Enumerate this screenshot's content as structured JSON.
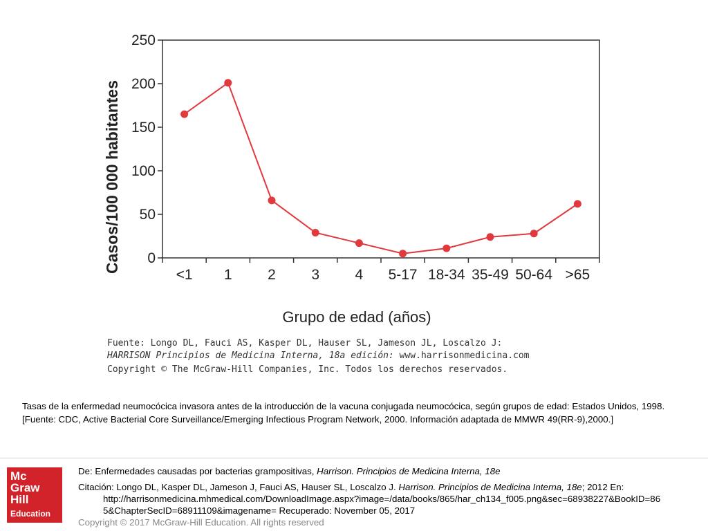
{
  "chart_data": {
    "type": "line",
    "title": "",
    "xlabel": "Grupo de edad (años)",
    "ylabel": "Casos/100 000 habitantes",
    "ylim": [
      0,
      250
    ],
    "yticks": [
      "0",
      "50",
      "100",
      "150",
      "200",
      "250"
    ],
    "categories": [
      "<1",
      "1",
      "2",
      "3",
      "4",
      "5-17",
      "18-34",
      "35-49",
      "50-64",
      ">65"
    ],
    "series": [
      {
        "name": "Casos",
        "values": [
          165,
          201,
          66,
          29,
          17,
          5,
          11,
          24,
          28,
          62
        ]
      }
    ],
    "line_color": "#e0393e",
    "grid": false
  },
  "source": {
    "line1": "Fuente: Longo DL, Fauci AS, Kasper DL, Hauser SL, Jameson JL, Loscalzo J:",
    "line2_italic": "HARRISON Principios de Medicina Interna, 18a edición:",
    "line2_rest": " www.harrisonmedicina.com",
    "line3": "Copyright © The McGraw-Hill Companies, Inc. Todos los derechos reservados."
  },
  "caption": "Tasas de la enfermedad neumocócica invasora antes de la introducción de la vacuna conjugada neumocócica, según grupos de edad: Estados Unidos, 1998. [Fuente: CDC, Active Bacterial Core Surveillance/Emerging Infectious Program Network, 2000. Información adaptada de MMWR 49(RR-9),2000.]",
  "logo": {
    "line1": "Mc",
    "line2": "Graw",
    "line3": "Hill",
    "line4": "Education",
    "color": "#d2232a"
  },
  "footer": {
    "from_prefix": "De: Enfermedades causadas por bacterias grampositivas, ",
    "from_book": "Harrison. Principios de Medicina Interna, 18e",
    "citation_prefix": "Citación: Longo DL, Kasper DL, Jameson J, Fauci AS, Hauser SL, Loscalzo J",
    "citation_sep": ". ",
    "citation_book": "Harrison. Principios de Medicina Interna, 18e",
    "citation_suffix": "; 2012 En:",
    "url_line1": "http://harrisonmedicina.mhmedical.com/DownloadImage.aspx?image=/data/books/865/har_ch134_f005.png&sec=68938227&BookID=86",
    "url_line2": "5&ChapterSecID=68911109&imagename= Recuperado: November 05, 2017",
    "copyright": "Copyright © 2017 McGraw-Hill Education. All rights reserved"
  }
}
